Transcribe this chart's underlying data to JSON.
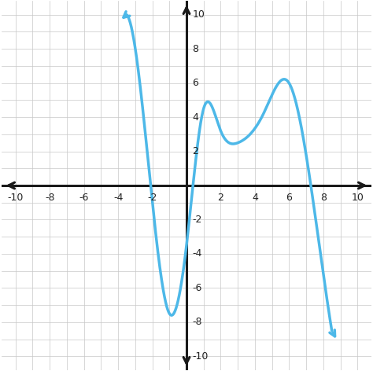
{
  "xlim": [
    -10.8,
    10.8
  ],
  "ylim": [
    -10.8,
    10.8
  ],
  "curve_color": "#4db8e8",
  "curve_linewidth": 2.5,
  "background_color": "#ffffff",
  "grid_color": "#c8c8c8",
  "axis_color": "#1a1a1a",
  "tick_fontsize": 9,
  "control_x": [
    -3.5,
    -2.2,
    -1.0,
    0.0,
    1.0,
    2.0,
    3.0,
    4.5,
    6.0,
    7.2,
    8.5
  ],
  "control_y": [
    10.0,
    1.0,
    -7.5,
    -3.5,
    4.5,
    3.2,
    2.5,
    4.2,
    6.0,
    0.5,
    -8.5
  ],
  "x_start": -3.5,
  "x_end": 8.5,
  "arrow_curve_color": "#4db8e8",
  "arrow_curve_lw": 2.5
}
